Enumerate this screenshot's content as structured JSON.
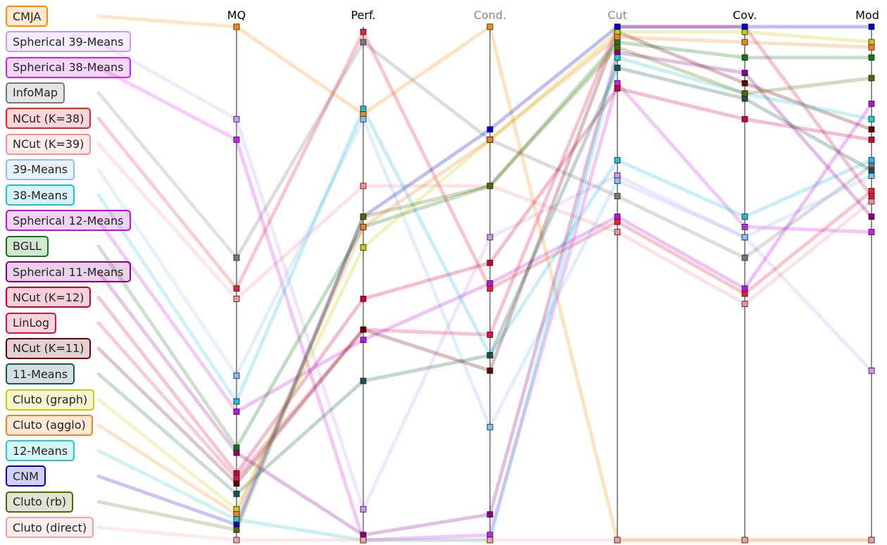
{
  "chart_data": {
    "type": "parallel_coordinates",
    "axes": [
      {
        "label": "MQ",
        "color": "#000000"
      },
      {
        "label": "Perf.",
        "color": "#000000"
      },
      {
        "label": "Cond.",
        "color": "#888888"
      },
      {
        "label": "Cut",
        "color": "#888888"
      },
      {
        "label": "Cov.",
        "color": "#000000"
      },
      {
        "label": "Mod",
        "color": "#000000"
      }
    ],
    "value_range": [
      0,
      1
    ],
    "series": [
      {
        "name": "CMJA",
        "color": "#ff8c00",
        "values": [
          1.0,
          0.83,
          1.0,
          0.0,
          0.0,
          0.0
        ]
      },
      {
        "name": "Spherical 39-Means",
        "color": "#c79af7",
        "values": [
          0.82,
          0.06,
          0.59,
          0.71,
          0.59,
          0.33
        ]
      },
      {
        "name": "Spherical 38-Means",
        "color": "#cc22ee",
        "values": [
          0.78,
          0.0,
          0.01,
          0.89,
          0.61,
          0.6
        ]
      },
      {
        "name": "InfoMap",
        "color": "#777777",
        "values": [
          0.55,
          0.97,
          0.78,
          0.67,
          0.55,
          0.73
        ]
      },
      {
        "name": "NCut (K=38)",
        "color": "#e8212f",
        "values": [
          0.49,
          0.99,
          0.49,
          0.62,
          0.48,
          0.68
        ]
      },
      {
        "name": "NCut (K=39)",
        "color": "#f39090",
        "values": [
          0.47,
          0.69,
          0.69,
          0.6,
          0.46,
          0.66
        ]
      },
      {
        "name": "39-Means",
        "color": "#88bff0",
        "values": [
          0.32,
          0.82,
          0.22,
          0.7,
          0.59,
          0.71
        ]
      },
      {
        "name": "38-Means",
        "color": "#22bbdd",
        "values": [
          0.27,
          0.84,
          0.36,
          0.74,
          0.63,
          0.74
        ]
      },
      {
        "name": "Spherical 12-Means",
        "color": "#bb11dd",
        "values": [
          0.25,
          0.39,
          0.5,
          0.63,
          0.49,
          0.85
        ]
      },
      {
        "name": "BGLL",
        "color": "#117711",
        "values": [
          0.18,
          0.61,
          0.69,
          0.97,
          0.94,
          0.94
        ]
      },
      {
        "name": "Spherical 11-Means",
        "color": "#880088",
        "values": [
          0.17,
          0.01,
          0.05,
          0.95,
          0.91,
          0.63
        ]
      },
      {
        "name": "NCut (K=12)",
        "color": "#cc0033",
        "values": [
          0.13,
          0.47,
          0.54,
          0.88,
          0.82,
          0.78
        ]
      },
      {
        "name": "LinLog",
        "color": "#dd1144",
        "values": [
          0.12,
          0.41,
          0.4,
          1.0,
          1.0,
          0.67
        ]
      },
      {
        "name": "NCut (K=11)",
        "color": "#660000",
        "values": [
          0.11,
          0.41,
          0.33,
          0.99,
          0.89,
          0.8
        ]
      },
      {
        "name": "11-Means",
        "color": "#115555",
        "values": [
          0.09,
          0.31,
          0.36,
          0.92,
          0.86,
          0.72
        ]
      },
      {
        "name": "Cluto (graph)",
        "color": "#cccc00",
        "values": [
          0.06,
          0.57,
          0.78,
          0.99,
          0.99,
          0.97
        ]
      },
      {
        "name": "Cluto (agglo)",
        "color": "#f08020",
        "values": [
          0.05,
          0.61,
          0.78,
          0.98,
          0.97,
          0.96
        ]
      },
      {
        "name": "12-Means",
        "color": "#22cccc",
        "values": [
          0.04,
          0.0,
          0.0,
          0.94,
          0.87,
          0.82
        ]
      },
      {
        "name": "CNM",
        "color": "#0000cc",
        "values": [
          0.03,
          0.63,
          0.8,
          1.0,
          1.0,
          1.0
        ]
      },
      {
        "name": "Cluto (rb)",
        "color": "#556600",
        "values": [
          0.02,
          0.63,
          0.69,
          0.96,
          0.87,
          0.9
        ]
      },
      {
        "name": "Cluto (direct)",
        "color": "#f4a0a0",
        "values": [
          0.0,
          0.0,
          0.0,
          0.0,
          0.0,
          0.0
        ]
      }
    ]
  }
}
